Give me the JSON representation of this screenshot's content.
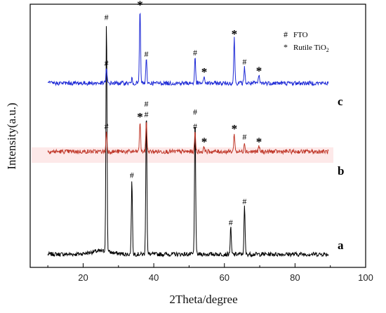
{
  "chart_data": {
    "type": "line",
    "title": "",
    "xlabel": "2Theta/degree",
    "ylabel": "Intensity(a.u.)",
    "xlim": [
      5,
      100
    ],
    "xticks": [
      20,
      40,
      60,
      80,
      100
    ],
    "yticks_shown": false,
    "legend": {
      "placement": "top-right",
      "entries": [
        {
          "symbol": "#",
          "label": "FTO"
        },
        {
          "symbol": "*",
          "label": "Rutile TiO",
          "subscript": "2"
        }
      ]
    },
    "series": [
      {
        "name": "a",
        "color": "#000000",
        "baseline": 0.05,
        "peaks": [
          [
            26.6,
            0.88
          ],
          [
            33.8,
            0.28
          ],
          [
            37.9,
            0.55
          ],
          [
            51.7,
            0.52
          ],
          [
            61.8,
            0.1
          ],
          [
            65.7,
            0.18
          ]
        ],
        "markers": [
          {
            "x": 26.6,
            "symbol": "#"
          },
          {
            "x": 33.8,
            "symbol": "#"
          },
          {
            "x": 37.9,
            "symbol": "#"
          },
          {
            "x": 51.7,
            "symbol": "#"
          },
          {
            "x": 61.8,
            "symbol": "#"
          },
          {
            "x": 65.7,
            "symbol": "#"
          }
        ]
      },
      {
        "name": "b",
        "color": "#c0392b",
        "baseline": 0.44,
        "peaks": [
          [
            26.6,
            0.075
          ],
          [
            36.1,
            0.115
          ],
          [
            37.9,
            0.12
          ],
          [
            51.7,
            0.075
          ],
          [
            54.3,
            0.02
          ],
          [
            62.8,
            0.07
          ],
          [
            65.7,
            0.035
          ],
          [
            69.8,
            0.02
          ]
        ],
        "markers": [
          {
            "x": 26.6,
            "symbol": "#"
          },
          {
            "x": 36.1,
            "symbol": "*"
          },
          {
            "x": 37.9,
            "symbol": "#"
          },
          {
            "x": 51.7,
            "symbol": "#"
          },
          {
            "x": 54.3,
            "symbol": "*"
          },
          {
            "x": 62.8,
            "symbol": "*"
          },
          {
            "x": 65.7,
            "symbol": "#"
          },
          {
            "x": 69.8,
            "symbol": "*"
          }
        ]
      },
      {
        "name": "c",
        "color": "#1f2bd6",
        "baseline": 0.7,
        "peaks": [
          [
            26.6,
            0.055
          ],
          [
            33.8,
            0.015
          ],
          [
            36.1,
            0.28
          ],
          [
            37.9,
            0.09
          ],
          [
            51.7,
            0.095
          ],
          [
            54.3,
            0.025
          ],
          [
            62.8,
            0.17
          ],
          [
            65.7,
            0.06
          ],
          [
            69.8,
            0.03
          ]
        ],
        "markers": [
          {
            "x": 26.6,
            "symbol": "#"
          },
          {
            "x": 36.1,
            "symbol": "*"
          },
          {
            "x": 37.9,
            "symbol": "#"
          },
          {
            "x": 51.7,
            "symbol": "#"
          },
          {
            "x": 54.3,
            "symbol": "*"
          },
          {
            "x": 62.8,
            "symbol": "*"
          },
          {
            "x": 65.7,
            "symbol": "#"
          },
          {
            "x": 69.8,
            "symbol": "*"
          }
        ]
      }
    ]
  }
}
